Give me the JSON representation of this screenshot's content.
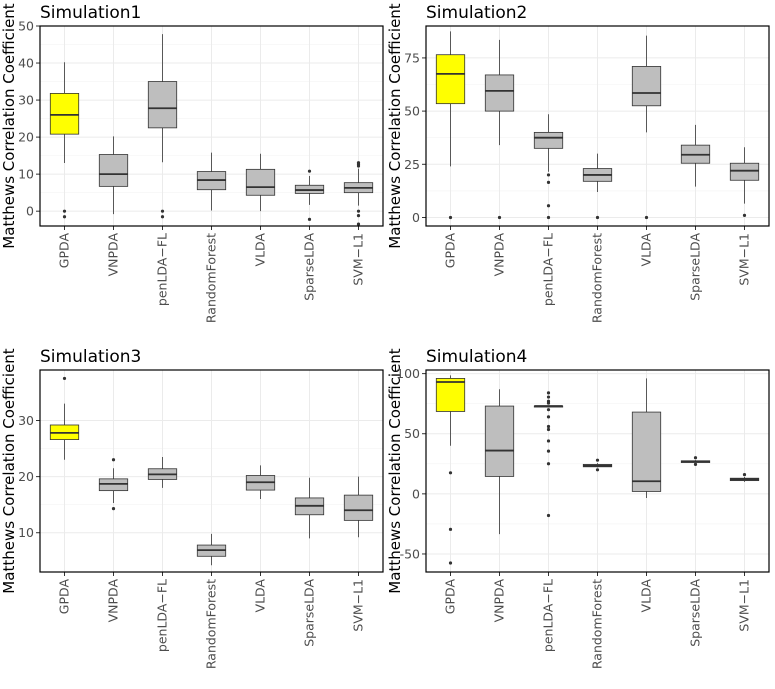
{
  "chart_data": [
    {
      "type": "boxplot",
      "title": "Simulation1",
      "ylabel": "Matthews Correlation Coefficient",
      "ylim": [
        -4,
        50
      ],
      "yticks": [
        0,
        10,
        20,
        30,
        40,
        50
      ],
      "categories": [
        "GPDA",
        "VNPDA",
        "penLDA−FL",
        "RandomForest",
        "VLDA",
        "SparseLDA",
        "SVM−L1"
      ],
      "highlight": "GPDA",
      "boxes": [
        {
          "min": 13,
          "q1": 20.8,
          "median": 26,
          "q3": 31.8,
          "max": 40.2,
          "outliers": [
            0,
            -1.5
          ]
        },
        {
          "min": -0.8,
          "q1": 6.7,
          "median": 10,
          "q3": 15.3,
          "max": 20.2,
          "outliers": []
        },
        {
          "min": 13.2,
          "q1": 22.5,
          "median": 27.8,
          "q3": 35,
          "max": 47.8,
          "outliers": [
            0,
            -1.5
          ]
        },
        {
          "min": 0.2,
          "q1": 5.8,
          "median": 8.4,
          "q3": 10.7,
          "max": 15.8,
          "outliers": []
        },
        {
          "min": 0,
          "q1": 4.3,
          "median": 6.5,
          "q3": 11.3,
          "max": 15.5,
          "outliers": []
        },
        {
          "min": 1.7,
          "q1": 4.8,
          "median": 5.7,
          "q3": 7,
          "max": 9.5,
          "outliers": [
            10.8,
            -2.2
          ]
        },
        {
          "min": 1.5,
          "q1": 5,
          "median": 6.3,
          "q3": 7.7,
          "max": 11.5,
          "outliers": [
            12.2,
            12.7,
            13.1,
            0,
            -1.2,
            -3.5
          ]
        }
      ]
    },
    {
      "type": "boxplot",
      "title": "Simulation2",
      "ylabel": "Matthews Correlation Coefficient",
      "ylim": [
        -4,
        90
      ],
      "yticks": [
        0,
        25,
        50,
        75
      ],
      "categories": [
        "GPDA",
        "VNPDA",
        "penLDA−FL",
        "RandomForest",
        "VLDA",
        "SparseLDA",
        "SVM−L1"
      ],
      "highlight": "GPDA",
      "boxes": [
        {
          "min": 24,
          "q1": 53.5,
          "median": 67.5,
          "q3": 76.5,
          "max": 87.5,
          "outliers": [
            0
          ]
        },
        {
          "min": 34,
          "q1": 50,
          "median": 59.5,
          "q3": 67,
          "max": 83.5,
          "outliers": [
            0
          ]
        },
        {
          "min": 21.5,
          "q1": 32.5,
          "median": 37.5,
          "q3": 40,
          "max": 48.5,
          "outliers": [
            20,
            16.5,
            5.5,
            0
          ]
        },
        {
          "min": 12,
          "q1": 17,
          "median": 20,
          "q3": 23,
          "max": 30,
          "outliers": [
            0
          ]
        },
        {
          "min": 40,
          "q1": 52.5,
          "median": 58.5,
          "q3": 71,
          "max": 85.5,
          "outliers": [
            0
          ]
        },
        {
          "min": 14.5,
          "q1": 25.5,
          "median": 29.5,
          "q3": 34,
          "max": 43.5,
          "outliers": []
        },
        {
          "min": 6.5,
          "q1": 17.5,
          "median": 22,
          "q3": 25.5,
          "max": 33,
          "outliers": [
            1
          ]
        }
      ]
    },
    {
      "type": "boxplot",
      "title": "Simulation3",
      "ylabel": "Matthews Correlation Coefficient",
      "ylim": [
        3,
        39
      ],
      "yticks": [
        10,
        20,
        30
      ],
      "categories": [
        "GPDA",
        "VNPDA",
        "penLDA−FL",
        "RandomForest",
        "VLDA",
        "SparseLDA",
        "SVM−L1"
      ],
      "highlight": "GPDA",
      "boxes": [
        {
          "min": 23,
          "q1": 26.6,
          "median": 27.8,
          "q3": 29.2,
          "max": 33,
          "outliers": [
            37.5
          ]
        },
        {
          "min": 15.3,
          "q1": 17.5,
          "median": 18.7,
          "q3": 19.6,
          "max": 21.5,
          "outliers": [
            23,
            14.3
          ]
        },
        {
          "min": 18,
          "q1": 19.5,
          "median": 20.4,
          "q3": 21.4,
          "max": 23.5,
          "outliers": []
        },
        {
          "min": 4.2,
          "q1": 5.8,
          "median": 6.9,
          "q3": 7.8,
          "max": 9.8,
          "outliers": []
        },
        {
          "min": 16,
          "q1": 17.6,
          "median": 19,
          "q3": 20.2,
          "max": 22,
          "outliers": []
        },
        {
          "min": 9,
          "q1": 13.2,
          "median": 14.8,
          "q3": 16.2,
          "max": 19.8,
          "outliers": []
        },
        {
          "min": 9.2,
          "q1": 12.2,
          "median": 14,
          "q3": 16.7,
          "max": 20,
          "outliers": []
        }
      ]
    },
    {
      "type": "boxplot",
      "title": "Simulation4",
      "ylabel": "Matthews Correlation Coefficient",
      "ylim": [
        -65,
        103
      ],
      "yticks": [
        -50,
        0,
        50,
        100
      ],
      "categories": [
        "GPDA",
        "VNPDA",
        "penLDA−FL",
        "RandomForest",
        "VLDA",
        "SparseLDA",
        "SVM−L1"
      ],
      "highlight": "GPDA",
      "boxes": [
        {
          "min": 40,
          "q1": 68.5,
          "median": 93,
          "q3": 96,
          "max": 98.5,
          "outliers": [
            17.5,
            -29.5,
            -57.5
          ]
        },
        {
          "min": -33.5,
          "q1": 14.5,
          "median": 36,
          "q3": 73,
          "max": 87,
          "outliers": []
        },
        {
          "min": 73,
          "q1": 73,
          "median": 73,
          "q3": 73,
          "max": 73,
          "outliers": [
            84,
            80.5,
            77,
            75.5,
            70,
            64,
            56,
            53.5,
            44,
            35.5,
            25,
            -18
          ]
        },
        {
          "min": 22,
          "q1": 22.5,
          "median": 23.5,
          "q3": 24.5,
          "max": 25.5,
          "outliers": [
            28,
            20
          ]
        },
        {
          "min": -3.5,
          "q1": 2,
          "median": 10.5,
          "q3": 68,
          "max": 96,
          "outliers": []
        },
        {
          "min": 25.5,
          "q1": 26,
          "median": 27,
          "q3": 27.5,
          "max": 28,
          "outliers": [
            30,
            24.5
          ]
        },
        {
          "min": 10,
          "q1": 11,
          "median": 12,
          "q3": 13,
          "max": 14,
          "outliers": [
            16
          ]
        }
      ]
    }
  ],
  "colors": {
    "highlight": "#ffff00",
    "box": "#bebebe",
    "line": "#333333",
    "grid": "#ebebeb",
    "frame": "#000000"
  }
}
